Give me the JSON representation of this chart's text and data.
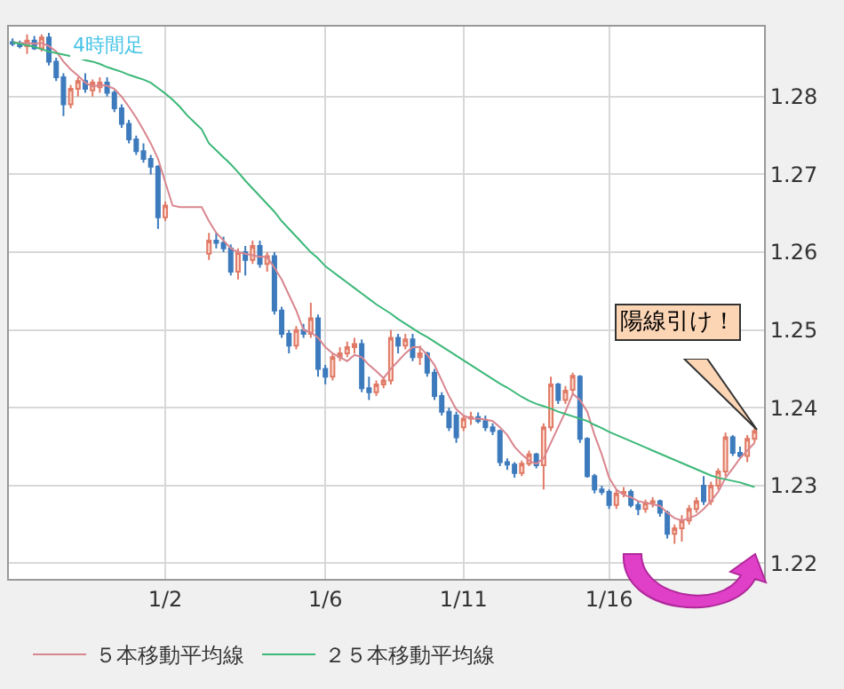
{
  "chart_data": {
    "type": "candlestick",
    "categories": [
      null,
      null,
      null,
      null,
      null,
      null,
      null,
      null,
      null,
      null,
      null,
      null,
      null,
      null,
      null,
      null,
      null,
      null,
      null,
      null,
      null,
      "1/2",
      null,
      null,
      null,
      null,
      null,
      null,
      null,
      null,
      null,
      null,
      null,
      null,
      null,
      null,
      null,
      null,
      null,
      null,
      null,
      null,
      null,
      "1/6",
      null,
      null,
      null,
      null,
      null,
      null,
      null,
      null,
      null,
      null,
      null,
      null,
      null,
      null,
      null,
      null,
      null,
      null,
      "1/11",
      null,
      null,
      null,
      null,
      null,
      null,
      null,
      null,
      null,
      null,
      null,
      null,
      null,
      null,
      null,
      null,
      null,
      null,
      null,
      "1/16",
      null,
      null,
      null,
      null,
      null,
      null,
      null,
      null,
      null,
      null,
      null,
      null,
      null,
      null,
      null,
      null,
      null,
      null,
      null,
      null
    ],
    "ohlc": [
      [
        1.287,
        1.2875,
        1.2865,
        1.2868
      ],
      [
        1.2868,
        1.2872,
        1.2862,
        1.2865
      ],
      [
        1.2865,
        1.288,
        1.2855,
        1.2872
      ],
      [
        1.2872,
        1.2878,
        1.286,
        1.2862
      ],
      [
        1.2862,
        1.288,
        1.2858,
        1.2876
      ],
      [
        1.2876,
        1.2882,
        1.284,
        1.2845
      ],
      [
        1.2845,
        1.285,
        1.282,
        1.2825
      ],
      [
        1.2825,
        1.283,
        1.2775,
        1.279
      ],
      [
        1.279,
        1.2815,
        1.2785,
        1.281
      ],
      [
        1.281,
        1.2825,
        1.28,
        1.282
      ],
      [
        1.282,
        1.283,
        1.2805,
        1.281
      ],
      [
        1.2808,
        1.2822,
        1.28,
        1.2818
      ],
      [
        1.2812,
        1.2825,
        1.2805,
        1.2818
      ],
      [
        1.2818,
        1.2825,
        1.28,
        1.2805
      ],
      [
        1.2805,
        1.2808,
        1.278,
        1.2785
      ],
      [
        1.2785,
        1.279,
        1.276,
        1.2765
      ],
      [
        1.2765,
        1.277,
        1.274,
        1.2745
      ],
      [
        1.2745,
        1.275,
        1.2725,
        1.273
      ],
      [
        1.273,
        1.274,
        1.2715,
        1.272
      ],
      [
        1.272,
        1.2725,
        1.27,
        1.271
      ],
      [
        1.271,
        1.2712,
        1.263,
        1.2645
      ],
      [
        1.2645,
        1.2665,
        1.264,
        1.266
      ],
      null,
      null,
      null,
      null,
      null,
      [
        1.2598,
        1.2625,
        1.259,
        1.2615
      ],
      [
        1.2615,
        1.2625,
        1.2605,
        1.2612
      ],
      [
        1.2612,
        1.262,
        1.26,
        1.2605
      ],
      [
        1.2605,
        1.261,
        1.257,
        1.2575
      ],
      [
        1.2575,
        1.2605,
        1.2565,
        1.26
      ],
      [
        1.26,
        1.2608,
        1.257,
        1.259
      ],
      [
        1.259,
        1.2615,
        1.2585,
        1.2608
      ],
      [
        1.2608,
        1.2615,
        1.258,
        1.2585
      ],
      [
        1.2585,
        1.26,
        1.2575,
        1.2595
      ],
      [
        1.2595,
        1.26,
        1.252,
        1.2525
      ],
      [
        1.2525,
        1.253,
        1.249,
        1.2495
      ],
      [
        1.2495,
        1.25,
        1.247,
        1.248
      ],
      [
        1.248,
        1.2505,
        1.2475,
        1.25
      ],
      [
        1.25,
        1.2508,
        1.249,
        1.2495
      ],
      [
        1.2495,
        1.2535,
        1.249,
        1.2515
      ],
      [
        1.2515,
        1.252,
        1.244,
        1.245
      ],
      [
        1.245,
        1.2455,
        1.243,
        1.244
      ],
      [
        1.244,
        1.247,
        1.2435,
        1.2465
      ],
      [
        1.2465,
        1.2478,
        1.246,
        1.247
      ],
      [
        1.247,
        1.2485,
        1.2465,
        1.2478
      ],
      [
        1.2478,
        1.249,
        1.247,
        1.2482
      ],
      [
        1.2482,
        1.2488,
        1.242,
        1.2425
      ],
      [
        1.2425,
        1.244,
        1.241,
        1.242
      ],
      [
        1.242,
        1.2435,
        1.2415,
        1.243
      ],
      [
        1.243,
        1.244,
        1.2425,
        1.2435
      ],
      [
        1.2435,
        1.25,
        1.243,
        1.249
      ],
      [
        1.249,
        1.2495,
        1.247,
        1.248
      ],
      [
        1.248,
        1.2495,
        1.2475,
        1.2488
      ],
      [
        1.2488,
        1.2495,
        1.246,
        1.2465
      ],
      [
        1.2465,
        1.248,
        1.2455,
        1.247
      ],
      [
        1.247,
        1.2472,
        1.244,
        1.2445
      ],
      [
        1.2445,
        1.245,
        1.241,
        1.2415
      ],
      [
        1.2415,
        1.242,
        1.239,
        1.2395
      ],
      [
        1.2395,
        1.24,
        1.237,
        1.2375
      ],
      [
        1.239,
        1.2395,
        1.2355,
        1.2362
      ],
      [
        1.2375,
        1.239,
        1.237,
        1.2386
      ],
      [
        1.2386,
        1.2395,
        1.2378,
        1.2388
      ],
      [
        1.2388,
        1.2394,
        1.238,
        1.2383
      ],
      [
        1.2383,
        1.239,
        1.237,
        1.2375
      ],
      [
        1.2375,
        1.238,
        1.2365,
        1.237
      ],
      [
        1.237,
        1.2372,
        1.2325,
        1.233
      ],
      [
        1.233,
        1.2335,
        1.232,
        1.2327
      ],
      [
        1.2327,
        1.233,
        1.231,
        1.2316
      ],
      [
        1.2316,
        1.2332,
        1.2312,
        1.2328
      ],
      [
        1.2328,
        1.2345,
        1.2325,
        1.234
      ],
      [
        1.234,
        1.2342,
        1.2322,
        1.2326
      ],
      [
        1.2326,
        1.238,
        1.2295,
        1.2375
      ],
      [
        1.2375,
        1.244,
        1.237,
        1.243
      ],
      [
        1.243,
        1.2432,
        1.2405,
        1.241
      ],
      [
        1.241,
        1.2428,
        1.2405,
        1.2422
      ],
      [
        1.2423,
        1.2445,
        1.2418,
        1.2441
      ],
      [
        1.244,
        1.2442,
        1.2355,
        1.236
      ],
      [
        1.236,
        1.2362,
        1.231,
        1.2312
      ],
      [
        1.2312,
        1.2315,
        1.229,
        1.2295
      ],
      [
        1.2295,
        1.23,
        1.2288,
        1.2292
      ],
      [
        1.2292,
        1.2295,
        1.227,
        1.2275
      ],
      [
        1.2275,
        1.2295,
        1.227,
        1.229
      ],
      [
        1.229,
        1.2298,
        1.2285,
        1.2292
      ],
      [
        1.2292,
        1.2295,
        1.2272,
        1.2275
      ],
      [
        1.2275,
        1.228,
        1.2262,
        1.227
      ],
      [
        1.227,
        1.2282,
        1.2265,
        1.2278
      ],
      [
        1.2278,
        1.2285,
        1.2272,
        1.228
      ],
      [
        1.228,
        1.2282,
        1.226,
        1.2265
      ],
      [
        1.2265,
        1.2268,
        1.2232,
        1.2238
      ],
      [
        1.2238,
        1.225,
        1.2225,
        1.2245
      ],
      [
        1.2245,
        1.2262,
        1.2228,
        1.2255
      ],
      [
        1.2255,
        1.2275,
        1.225,
        1.227
      ],
      [
        1.227,
        1.2285,
        1.2265,
        1.228
      ],
      [
        1.23,
        1.2312,
        1.2275,
        1.228
      ],
      [
        1.228,
        1.2305,
        1.2275,
        1.23
      ],
      [
        1.23,
        1.2322,
        1.2295,
        1.2318
      ],
      [
        1.2318,
        1.2368,
        1.2312,
        1.2362
      ],
      [
        1.2362,
        1.2365,
        1.2338,
        1.2342
      ],
      [
        1.2342,
        1.235,
        1.2335,
        1.2338
      ],
      [
        1.2338,
        1.2365,
        1.233,
        1.236
      ],
      [
        1.236,
        1.2375,
        1.2355,
        1.237
      ]
    ],
    "series": [
      {
        "type": "line",
        "name": "５本移動平均線",
        "color": "#d9868f",
        "values": [
          1.287,
          1.2869,
          1.2869,
          1.2868,
          1.2869,
          1.2865,
          1.2858,
          1.2845,
          1.2835,
          1.2827,
          1.2818,
          1.2813,
          1.2815,
          1.2814,
          1.281,
          1.28,
          1.2787,
          1.2773,
          1.2757,
          1.274,
          1.272,
          1.269,
          1.266,
          1.2658,
          1.2658,
          1.2658,
          1.2658,
          1.264,
          1.2625,
          1.2615,
          1.2605,
          1.26,
          1.2598,
          1.2596,
          1.2594,
          1.2594,
          1.258,
          1.2565,
          1.2545,
          1.2525,
          1.25,
          1.2497,
          1.249,
          1.2478,
          1.247,
          1.2465,
          1.246,
          1.2468,
          1.2465,
          1.2455,
          1.2447,
          1.2438,
          1.245,
          1.246,
          1.247,
          1.2478,
          1.2478,
          1.2468,
          1.2455,
          1.2435,
          1.2415,
          1.2398,
          1.239,
          1.2386,
          1.2386,
          1.2385,
          1.2383,
          1.2375,
          1.2365,
          1.235,
          1.234,
          1.2332,
          1.2328,
          1.2335,
          1.2355,
          1.2375,
          1.2395,
          1.2418,
          1.241,
          1.2395,
          1.2365,
          1.234,
          1.231,
          1.2295,
          1.2288,
          1.2285,
          1.228,
          1.2278,
          1.2276,
          1.2274,
          1.2265,
          1.2258,
          1.2255,
          1.2258,
          1.2262,
          1.227,
          1.228,
          1.2292,
          1.231,
          1.2322,
          1.2335,
          1.2345,
          1.2355
        ]
      },
      {
        "type": "line",
        "name": "２５本移動平均線",
        "color": "#3cb878",
        "values": [
          1.287,
          1.2868,
          1.2866,
          1.2864,
          1.2861,
          1.2858,
          1.2856,
          1.2854,
          1.2852,
          1.285,
          1.2847,
          1.2845,
          1.2842,
          1.2838,
          1.2835,
          1.2832,
          1.2828,
          1.2825,
          1.2822,
          1.2818,
          1.2811,
          1.2804,
          1.2796,
          1.2787,
          1.2776,
          1.2767,
          1.2758,
          1.274,
          1.2731,
          1.2722,
          1.2713,
          1.2703,
          1.2692,
          1.2682,
          1.2672,
          1.2662,
          1.2652,
          1.264,
          1.263,
          1.262,
          1.261,
          1.26,
          1.2592,
          1.2582,
          1.2575,
          1.2568,
          1.2561,
          1.2554,
          1.2547,
          1.254,
          1.2533,
          1.2527,
          1.2521,
          1.2514,
          1.2508,
          1.2502,
          1.2496,
          1.2491,
          1.2485,
          1.2479,
          1.2473,
          1.2467,
          1.2461,
          1.2455,
          1.2449,
          1.2443,
          1.2437,
          1.2431,
          1.2426,
          1.242,
          1.2414,
          1.2409,
          1.2405,
          1.2402,
          1.2399,
          1.2395,
          1.2392,
          1.2389,
          1.2386,
          1.2383,
          1.2378,
          1.2374,
          1.2369,
          1.2365,
          1.2361,
          1.2357,
          1.2353,
          1.2349,
          1.2345,
          1.2341,
          1.2337,
          1.2333,
          1.2329,
          1.2325,
          1.2321,
          1.2317,
          1.2313,
          1.231,
          1.2308,
          1.2306,
          1.2304,
          1.2301,
          1.2298
        ]
      }
    ],
    "ylim": [
      1.218,
      1.289
    ],
    "yticks": [
      1.22,
      1.23,
      1.24,
      1.25,
      1.26,
      1.27,
      1.28
    ],
    "grid": true,
    "legend": "bottom",
    "marker": "none",
    "annotations": [
      "4時間足",
      "陽線引け！"
    ]
  }
}
